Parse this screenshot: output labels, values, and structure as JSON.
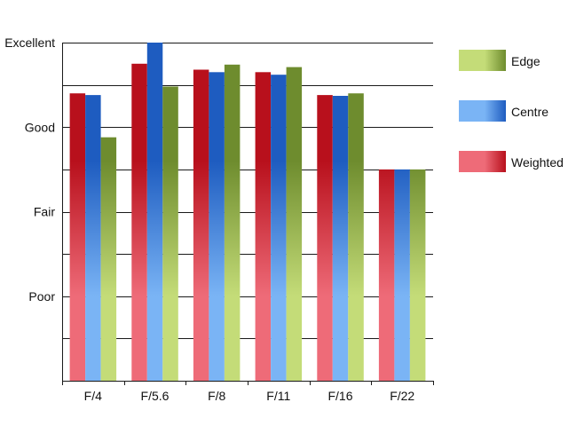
{
  "chart_data": {
    "type": "bar",
    "title": "",
    "xlabel": "",
    "ylabel": "",
    "categories": [
      "F/4",
      "F/5.6",
      "F/8",
      "F/11",
      "F/16",
      "F/22"
    ],
    "y_tick_labels": [
      "Poor",
      "Fair",
      "Good",
      "Excellent"
    ],
    "y_tick_values": [
      1,
      2,
      3,
      4
    ],
    "ylim": [
      0,
      4
    ],
    "grid": true,
    "legend_position": "right",
    "series": [
      {
        "name": "Weighted",
        "values": [
          3.4,
          3.75,
          3.68,
          3.65,
          3.38,
          2.5
        ],
        "color_light": "#ee6b78",
        "color_dark": "#b8101c"
      },
      {
        "name": "Centre",
        "values": [
          3.38,
          4.0,
          3.65,
          3.62,
          3.37,
          2.5
        ],
        "color_light": "#7ab4f5",
        "color_dark": "#1e5cc0"
      },
      {
        "name": "Edge",
        "values": [
          2.88,
          3.48,
          3.74,
          3.71,
          3.4,
          2.5
        ],
        "color_light": "#c4dc78",
        "color_dark": "#6e8c2e"
      }
    ],
    "legend_order": [
      "Edge",
      "Centre",
      "Weighted"
    ]
  }
}
